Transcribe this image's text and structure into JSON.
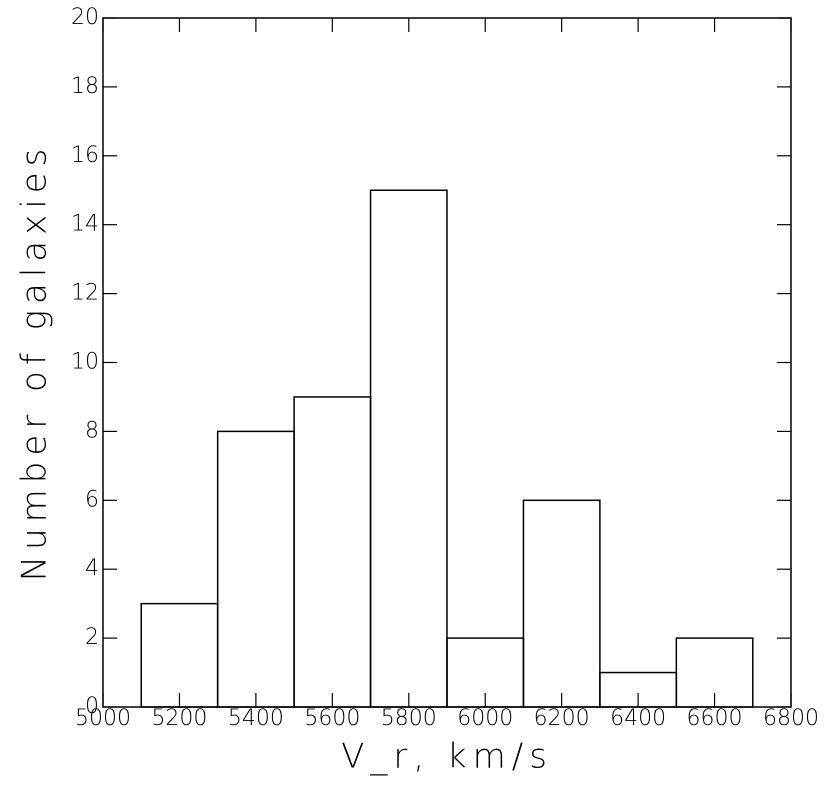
{
  "chart_data": {
    "type": "histogram",
    "xlabel": "V_r, km/s",
    "ylabel": "Number of galaxies",
    "bins": [
      5100,
      5300,
      5500,
      5700,
      5900,
      6100,
      6300,
      6500,
      6700
    ],
    "counts": [
      3,
      8,
      9,
      15,
      2,
      6,
      1,
      2
    ],
    "color": "#000000",
    "xlim": [
      5000,
      6800
    ],
    "xticks": [
      5000,
      5200,
      5400,
      5600,
      5800,
      6000,
      6200,
      6400,
      6600,
      6800
    ],
    "ylim": [
      0,
      20
    ],
    "yticks": [
      0,
      2,
      4,
      6,
      8,
      10,
      12,
      14,
      16,
      18,
      20
    ]
  }
}
